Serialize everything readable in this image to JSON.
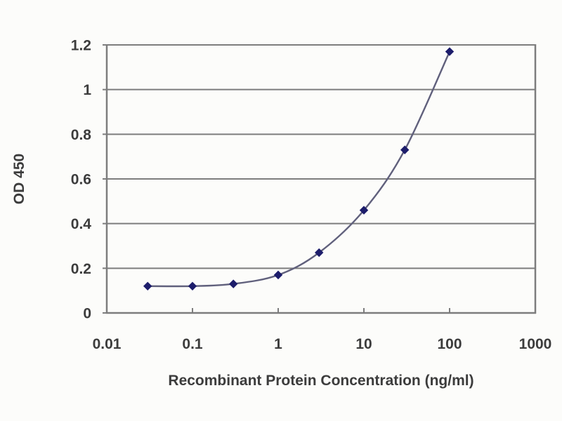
{
  "chart_data": {
    "type": "line",
    "x": [
      0.03,
      0.1,
      0.3,
      1,
      3,
      10,
      30,
      100
    ],
    "y": [
      0.12,
      0.12,
      0.13,
      0.17,
      0.27,
      0.46,
      0.73,
      1.17
    ],
    "x_scale": "log",
    "xlabel": "Recombinant Protein Concentration (ng/ml)",
    "ylabel": "OD 450",
    "xlim": [
      0.01,
      1000
    ],
    "ylim": [
      0,
      1.2
    ],
    "x_tick_labels": [
      "0.01",
      "0.1",
      "1",
      "10",
      "100",
      "1000"
    ],
    "x_tick_values": [
      0.01,
      0.1,
      1,
      10,
      100,
      1000
    ],
    "y_tick_labels": [
      "0",
      "0.2",
      "0.4",
      "0.6",
      "0.8",
      "1",
      "1.2"
    ],
    "y_tick_values": [
      0,
      0.2,
      0.4,
      0.6,
      0.8,
      1,
      1.2
    ],
    "grid": "horizontal",
    "legend": "none",
    "title": "",
    "marker": "diamond",
    "colors": {
      "line": "#60607c",
      "marker": "#1d1d6b",
      "grid": "#7d7d7d",
      "frame": "#7d7d7d",
      "text": "#3c3c3c",
      "background": "#fcfcfa"
    }
  }
}
